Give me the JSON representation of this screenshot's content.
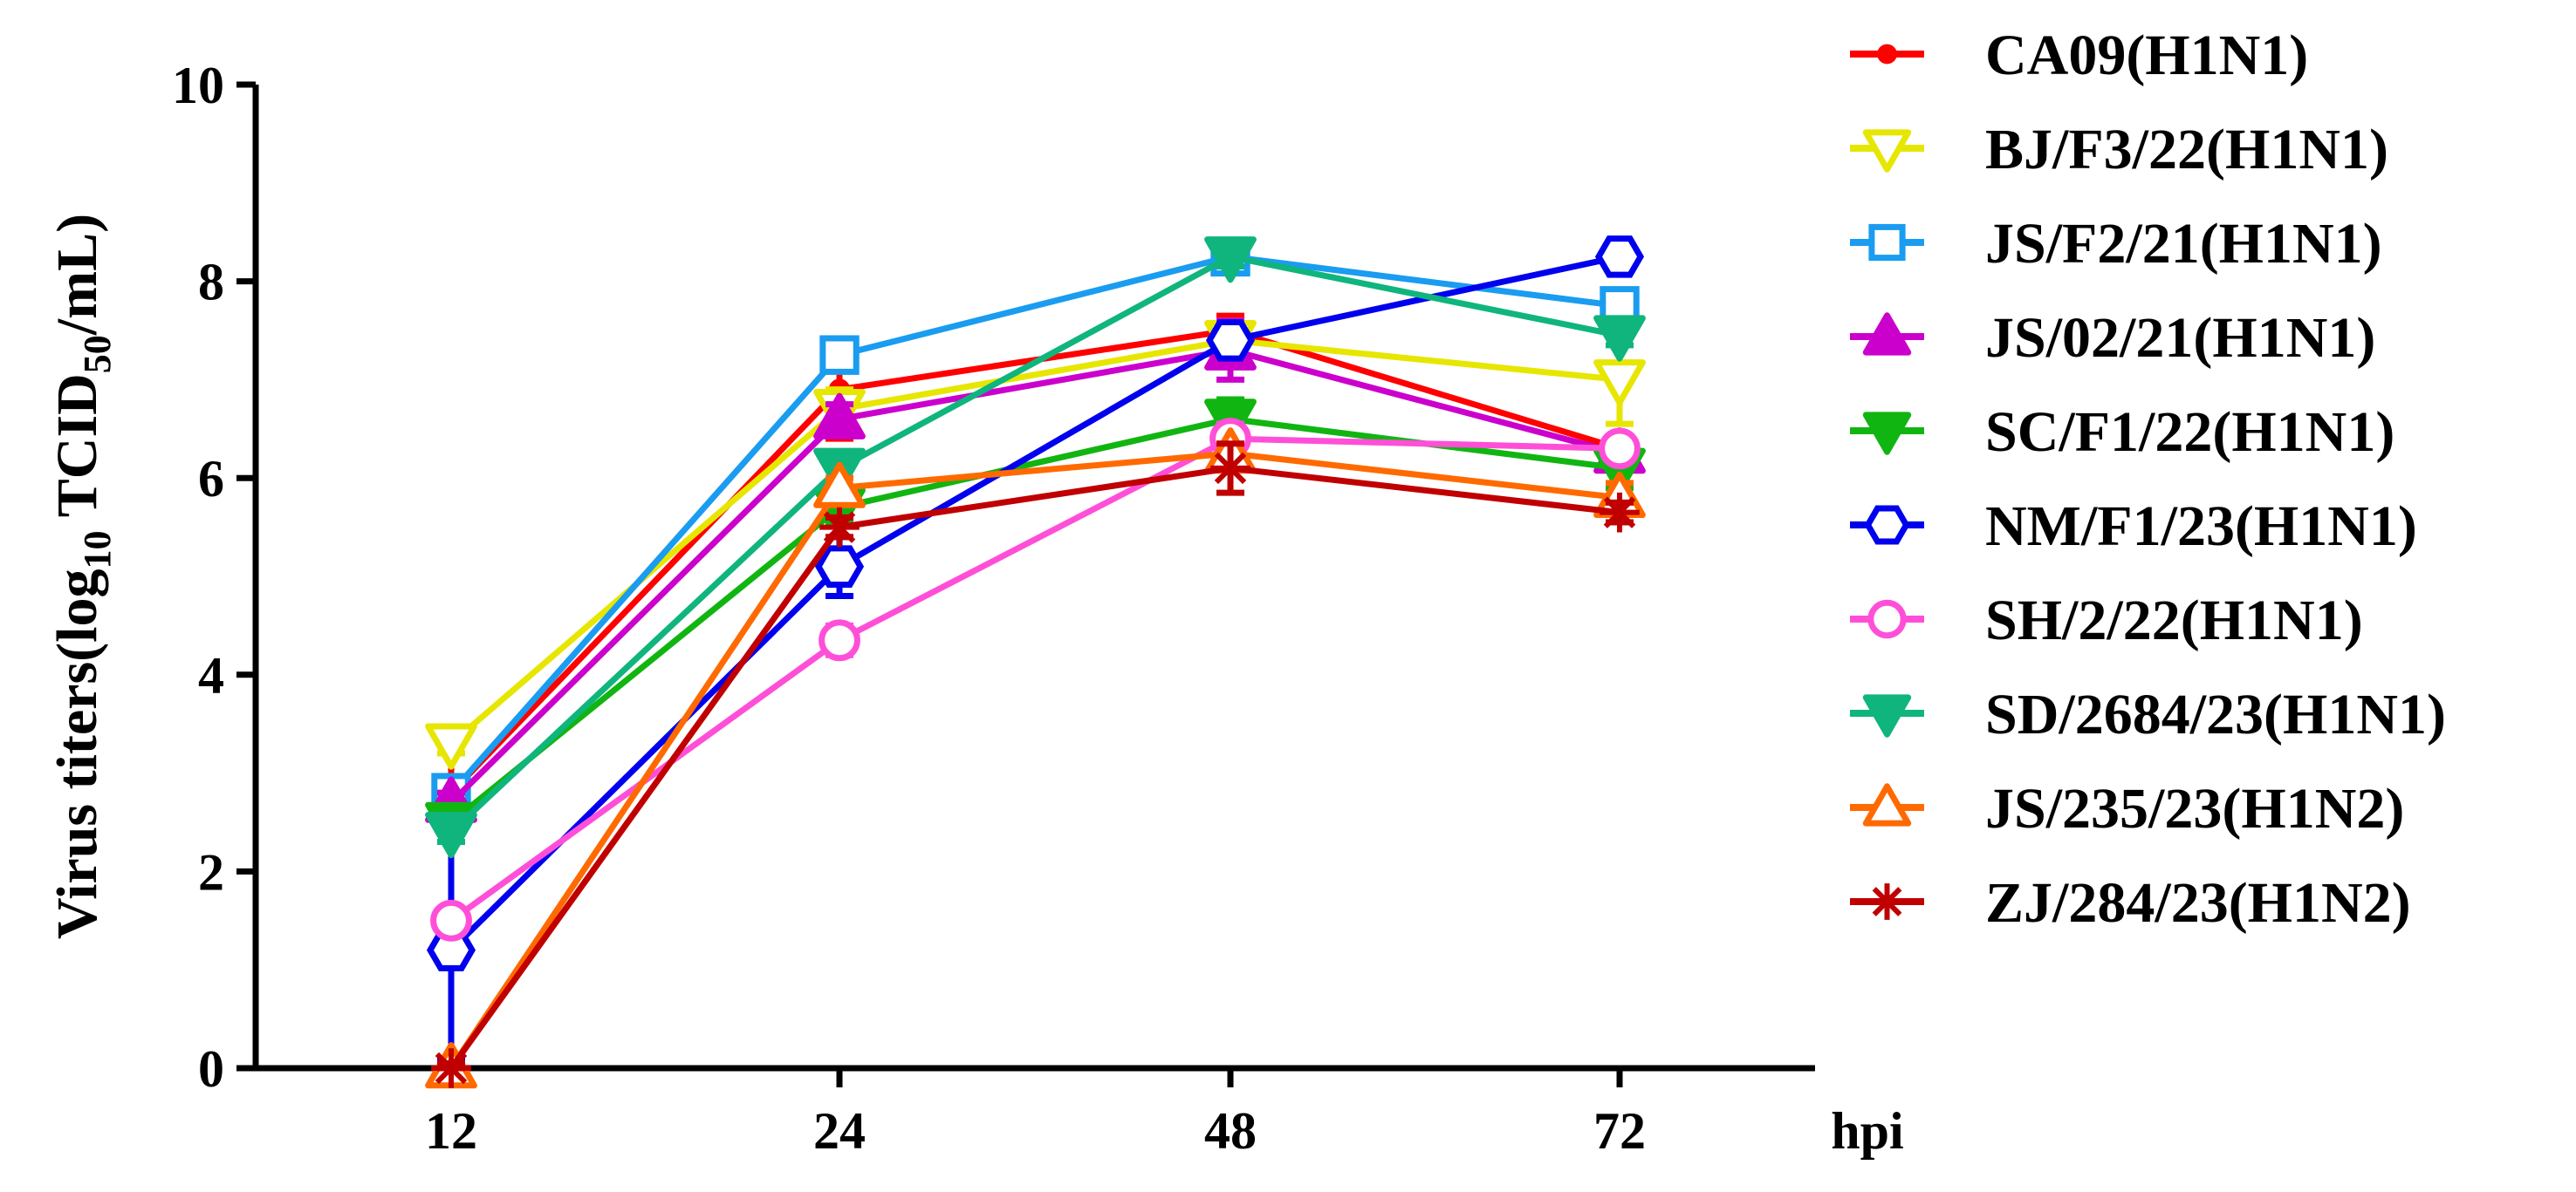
{
  "chart_data": {
    "type": "line",
    "title": "",
    "xlabel": "hpi",
    "ylabel_parts": [
      "Virus titers(log",
      "10",
      " TCID",
      "50",
      "/mL)"
    ],
    "categories": [
      "12",
      "24",
      "48",
      "72"
    ],
    "yticks": [
      "0",
      "2",
      "4",
      "6",
      "8",
      "10"
    ],
    "ylim": [
      0,
      10
    ],
    "legend_position": "right",
    "series": [
      {
        "name": "CA09(H1N1)",
        "color": "#ff0000",
        "marker": "dot",
        "values": [
          2.8,
          6.9,
          7.5,
          6.3
        ],
        "err": [
          0.4,
          0.5,
          0.15,
          0.1
        ]
      },
      {
        "name": "BJ/F3/22(H1N1)",
        "color": "#e6e600",
        "marker": "triangle-down-open",
        "values": [
          3.3,
          6.7,
          7.4,
          7.0
        ],
        "err": [
          0.1,
          0.2,
          0.2,
          0.45
        ]
      },
      {
        "name": "JS/F2/21(H1N1)",
        "color": "#1a9cf0",
        "marker": "square-open",
        "values": [
          2.8,
          7.25,
          8.25,
          7.75
        ],
        "err": [
          0.1,
          0.1,
          0.1,
          0.1
        ]
      },
      {
        "name": "JS/02/21(H1N1)",
        "color": "#cc00cc",
        "marker": "triangle-up",
        "values": [
          2.7,
          6.6,
          7.3,
          6.25
        ],
        "err": [
          0.1,
          0.15,
          0.3,
          0.1
        ]
      },
      {
        "name": "SC/F1/22(H1N1)",
        "color": "#11b511",
        "marker": "triangle-down",
        "values": [
          2.5,
          5.7,
          6.6,
          6.1
        ],
        "err": [
          0.1,
          0.15,
          0.2,
          0.2
        ]
      },
      {
        "name": "NM/F1/23(H1N1)",
        "color": "#0000ee",
        "marker": "hexagon-open",
        "values": [
          1.2,
          5.1,
          7.4,
          8.25
        ],
        "err": [
          1.1,
          0.3,
          0.15,
          0.1
        ]
      },
      {
        "name": "SH/2/22(H1N1)",
        "color": "#ff4fd8",
        "marker": "circle-open",
        "values": [
          1.5,
          4.35,
          6.4,
          6.3
        ],
        "err": [
          0.1,
          0.15,
          0.15,
          0.1
        ]
      },
      {
        "name": "SD/2684/23(H1N1)",
        "color": "#0fb57c",
        "marker": "triangle-down",
        "values": [
          2.4,
          6.1,
          8.25,
          7.45
        ],
        "err": [
          0.1,
          0.1,
          0.1,
          0.1
        ]
      },
      {
        "name": "JS/235/23(H1N2)",
        "color": "#ff6a00",
        "marker": "triangle-up-open",
        "values": [
          0,
          5.9,
          6.25,
          5.8
        ],
        "err": [
          0.05,
          0.1,
          0.1,
          0.15
        ]
      },
      {
        "name": "ZJ/284/23(H1N2)",
        "color": "#c00000",
        "marker": "asterisk",
        "values": [
          0,
          5.5,
          6.1,
          5.65
        ],
        "err": [
          0.05,
          0.1,
          0.25,
          0.1
        ]
      }
    ]
  }
}
